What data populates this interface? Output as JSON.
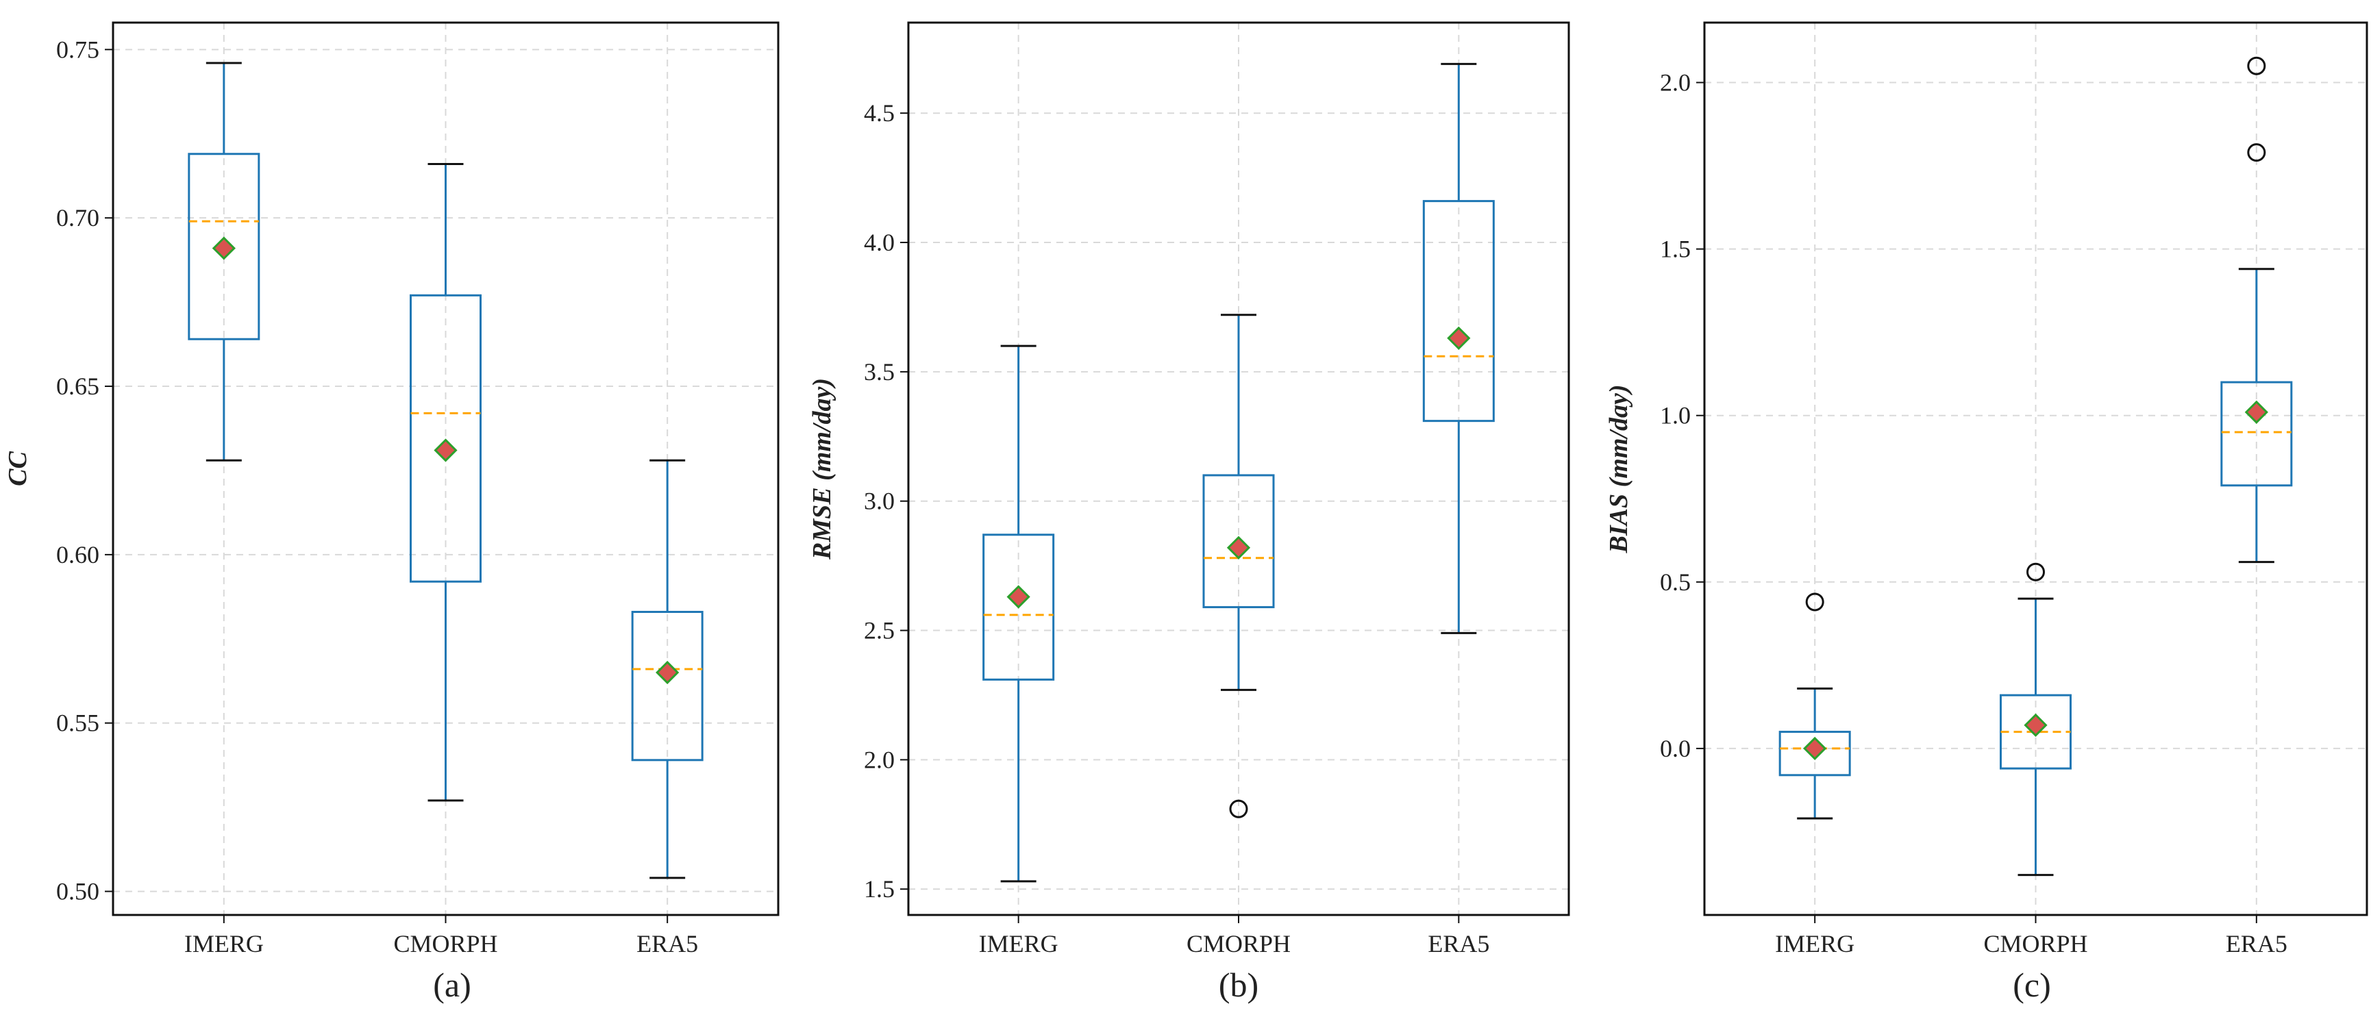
{
  "chart_data": [
    {
      "type": "box",
      "panel_label": "(a)",
      "ylabel": "CC",
      "ylim": [
        0.493,
        0.758
      ],
      "yticks": [
        0.5,
        0.55,
        0.6,
        0.65,
        0.7,
        0.75
      ],
      "ytick_labels": [
        "0.50",
        "0.55",
        "0.60",
        "0.65",
        "0.70",
        "0.75"
      ],
      "categories": [
        "IMERG",
        "CMORPH",
        "ERA5"
      ],
      "boxes": [
        {
          "whisker_low": 0.628,
          "q1": 0.664,
          "median": 0.699,
          "q3": 0.719,
          "whisker_high": 0.746,
          "mean": 0.691,
          "outliers": []
        },
        {
          "whisker_low": 0.527,
          "q1": 0.592,
          "median": 0.642,
          "q3": 0.677,
          "whisker_high": 0.716,
          "mean": 0.631,
          "outliers": []
        },
        {
          "whisker_low": 0.504,
          "q1": 0.539,
          "median": 0.566,
          "q3": 0.583,
          "whisker_high": 0.628,
          "mean": 0.565,
          "outliers": []
        }
      ]
    },
    {
      "type": "box",
      "panel_label": "(b)",
      "ylabel": "RMSE (mm/day)",
      "ylim": [
        1.4,
        4.85
      ],
      "yticks": [
        1.5,
        2.0,
        2.5,
        3.0,
        3.5,
        4.0,
        4.5
      ],
      "ytick_labels": [
        "1.5",
        "2.0",
        "2.5",
        "3.0",
        "3.5",
        "4.0",
        "4.5"
      ],
      "categories": [
        "IMERG",
        "CMORPH",
        "ERA5"
      ],
      "boxes": [
        {
          "whisker_low": 1.53,
          "q1": 2.31,
          "median": 2.56,
          "q3": 2.87,
          "whisker_high": 3.6,
          "mean": 2.63,
          "outliers": []
        },
        {
          "whisker_low": 2.27,
          "q1": 2.59,
          "median": 2.78,
          "q3": 3.1,
          "whisker_high": 3.72,
          "mean": 2.82,
          "outliers": [
            1.81
          ]
        },
        {
          "whisker_low": 2.49,
          "q1": 3.31,
          "median": 3.56,
          "q3": 4.16,
          "whisker_high": 4.69,
          "mean": 3.63,
          "outliers": []
        }
      ]
    },
    {
      "type": "box",
      "panel_label": "(c)",
      "ylabel": "BIAS (mm/day)",
      "ylim": [
        -0.5,
        2.18
      ],
      "yticks": [
        0.0,
        0.5,
        1.0,
        1.5,
        2.0
      ],
      "ytick_labels": [
        "0.0",
        "0.5",
        "1.0",
        "1.5",
        "2.0"
      ],
      "categories": [
        "IMERG",
        "CMORPH",
        "ERA5"
      ],
      "boxes": [
        {
          "whisker_low": -0.21,
          "q1": -0.08,
          "median": 0.0,
          "q3": 0.05,
          "whisker_high": 0.18,
          "mean": 0.0,
          "outliers": [
            0.44
          ]
        },
        {
          "whisker_low": -0.38,
          "q1": -0.06,
          "median": 0.05,
          "q3": 0.16,
          "whisker_high": 0.45,
          "mean": 0.07,
          "outliers": [
            0.53
          ]
        },
        {
          "whisker_low": 0.56,
          "q1": 0.79,
          "median": 0.95,
          "q3": 1.1,
          "whisker_high": 1.44,
          "mean": 1.01,
          "outliers": [
            1.79,
            2.05
          ]
        }
      ]
    }
  ],
  "colors": {
    "box": "#1f77b4",
    "whisker": "#1f77b4",
    "cap": "#111111",
    "median": "#ffa500",
    "mean_fill": "#d9534f",
    "mean_edge": "#2ca02c",
    "outlier": "#111111",
    "grid": "#d9d9d9",
    "axis": "#111111"
  }
}
